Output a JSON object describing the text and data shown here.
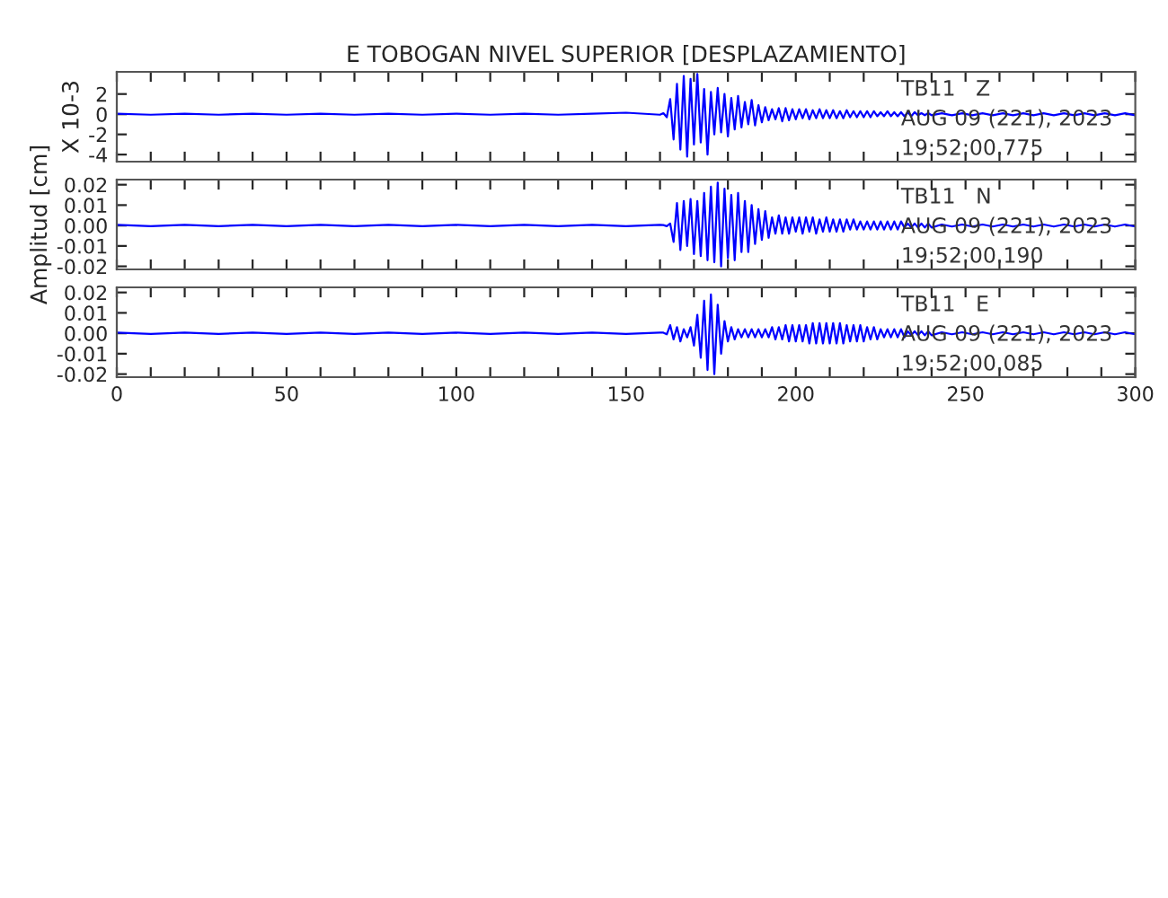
{
  "chart_data": [
    {
      "type": "line",
      "title": "E TOBOGAN NIVEL SUPERIOR [DESPLAZAMIENTO]",
      "ylabel": "X 10-3",
      "tick_labels": "y",
      "grid": false,
      "legend": false,
      "annotations": [
        "TB11   Z",
        "AUG 09 (221), 2023",
        "19:52:00.775"
      ],
      "xlim": [
        0,
        300
      ],
      "xticks": [
        0,
        {
          "value": 10,
          "label": null
        },
        {
          "value": 20,
          "label": null
        },
        {
          "value": 30,
          "label": null
        },
        {
          "value": 40,
          "label": null
        },
        50,
        {
          "value": 60,
          "label": null
        },
        {
          "value": 70,
          "label": null
        },
        {
          "value": 80,
          "label": null
        },
        {
          "value": 90,
          "label": null
        },
        100,
        {
          "value": 110,
          "label": null
        },
        {
          "value": 120,
          "label": null
        },
        {
          "value": 130,
          "label": null
        },
        {
          "value": 140,
          "label": null
        },
        150,
        {
          "value": 160,
          "label": null
        },
        {
          "value": 170,
          "label": null
        },
        {
          "value": 180,
          "label": null
        },
        {
          "value": 190,
          "label": null
        },
        200,
        {
          "value": 210,
          "label": null
        },
        {
          "value": 220,
          "label": null
        },
        {
          "value": 230,
          "label": null
        },
        {
          "value": 240,
          "label": null
        },
        250,
        {
          "value": 260,
          "label": null
        },
        {
          "value": 270,
          "label": null
        },
        {
          "value": 280,
          "label": null
        },
        {
          "value": 290,
          "label": null
        },
        300
      ],
      "ylim": [
        -4.7,
        4.2
      ],
      "yticks": [
        -4,
        -2,
        0,
        2
      ],
      "x": [
        0,
        10,
        20,
        30,
        40,
        50,
        60,
        70,
        80,
        90,
        100,
        110,
        120,
        130,
        140,
        150,
        160,
        161,
        162,
        163,
        164,
        165,
        166,
        167,
        168,
        169,
        170,
        171,
        172,
        173,
        174,
        175,
        176,
        177,
        178,
        179,
        180,
        181,
        182,
        183,
        184,
        185,
        186,
        187,
        188,
        189,
        190,
        191,
        192,
        193,
        194,
        195,
        196,
        197,
        198,
        199,
        200,
        201,
        202,
        203,
        204,
        205,
        206,
        207,
        208,
        209,
        210,
        211,
        212,
        213,
        214,
        215,
        216,
        217,
        218,
        219,
        220,
        221,
        222,
        223,
        224,
        225,
        226,
        227,
        228,
        229,
        230,
        231,
        232,
        233,
        234,
        235,
        236,
        237,
        238,
        239,
        240,
        243,
        246,
        249,
        252,
        255,
        258,
        261,
        264,
        267,
        270,
        273,
        276,
        279,
        282,
        285,
        288,
        291,
        294,
        297,
        300
      ],
      "series": [
        {
          "color": "#0000ff",
          "values": [
            0.05,
            -0.05,
            0.05,
            -0.05,
            0.05,
            -0.05,
            0.05,
            -0.05,
            0.05,
            -0.05,
            0.05,
            -0.05,
            0.05,
            -0.05,
            0.05,
            0.15,
            -0.05,
            0.1,
            -0.3,
            1.5,
            -2.5,
            3.0,
            -3.5,
            3.8,
            -4.2,
            3.5,
            -3.0,
            4.0,
            -2.8,
            2.5,
            -4.0,
            2.2,
            -2.0,
            2.6,
            -1.8,
            2.0,
            -2.2,
            1.6,
            -1.5,
            1.8,
            -1.3,
            1.2,
            -1.0,
            1.4,
            -1.1,
            0.9,
            -0.8,
            0.7,
            -0.6,
            0.5,
            -0.5,
            0.6,
            -0.7,
            0.6,
            -0.6,
            0.5,
            -0.5,
            0.5,
            -0.4,
            0.5,
            -0.5,
            0.4,
            -0.4,
            0.5,
            -0.4,
            0.4,
            -0.4,
            0.4,
            -0.4,
            0.3,
            -0.4,
            0.4,
            -0.3,
            0.3,
            -0.3,
            0.3,
            -0.3,
            0.3,
            -0.3,
            0.3,
            -0.2,
            0.2,
            -0.2,
            0.3,
            -0.2,
            0.2,
            -0.2,
            0.2,
            -0.2,
            0.2,
            -0.2,
            0.2,
            -0.1,
            0.1,
            -0.1,
            0.1,
            -0.1,
            0.1,
            -0.1,
            0.1,
            -0.1,
            0.1,
            -0.1,
            0.1,
            -0.1,
            0.1,
            -0.1,
            0.1,
            -0.1,
            0.1,
            -0.1,
            0.1,
            -0.1,
            0.1,
            -0.1,
            0.1,
            -0.1
          ]
        }
      ]
    },
    {
      "type": "line",
      "ylabel": "Amplitud [cm]",
      "tick_labels": "y",
      "grid": false,
      "legend": false,
      "annotations": [
        "TB11   N",
        "AUG 09 (221), 2023",
        "19:52:00.190"
      ],
      "xlim": [
        0,
        300
      ],
      "xticks": [
        0,
        {
          "value": 10,
          "label": null
        },
        {
          "value": 20,
          "label": null
        },
        {
          "value": 30,
          "label": null
        },
        {
          "value": 40,
          "label": null
        },
        50,
        {
          "value": 60,
          "label": null
        },
        {
          "value": 70,
          "label": null
        },
        {
          "value": 80,
          "label": null
        },
        {
          "value": 90,
          "label": null
        },
        100,
        {
          "value": 110,
          "label": null
        },
        {
          "value": 120,
          "label": null
        },
        {
          "value": 130,
          "label": null
        },
        {
          "value": 140,
          "label": null
        },
        150,
        {
          "value": 160,
          "label": null
        },
        {
          "value": 170,
          "label": null
        },
        {
          "value": 180,
          "label": null
        },
        {
          "value": 190,
          "label": null
        },
        200,
        {
          "value": 210,
          "label": null
        },
        {
          "value": 220,
          "label": null
        },
        {
          "value": 230,
          "label": null
        },
        {
          "value": 240,
          "label": null
        },
        250,
        {
          "value": 260,
          "label": null
        },
        {
          "value": 270,
          "label": null
        },
        {
          "value": 280,
          "label": null
        },
        {
          "value": 290,
          "label": null
        },
        300
      ],
      "ylim": [
        -0.0215,
        0.0225
      ],
      "yticks": [
        -0.02,
        -0.01,
        {
          "value": 0,
          "label": "0.00"
        },
        0.01,
        0.02
      ],
      "x": [
        0,
        10,
        20,
        30,
        40,
        50,
        60,
        70,
        80,
        90,
        100,
        110,
        120,
        130,
        140,
        150,
        160,
        161,
        162,
        163,
        164,
        165,
        166,
        167,
        168,
        169,
        170,
        171,
        172,
        173,
        174,
        175,
        176,
        177,
        178,
        179,
        180,
        181,
        182,
        183,
        184,
        185,
        186,
        187,
        188,
        189,
        190,
        191,
        192,
        193,
        194,
        195,
        196,
        197,
        198,
        199,
        200,
        201,
        202,
        203,
        204,
        205,
        206,
        207,
        208,
        209,
        210,
        211,
        212,
        213,
        214,
        215,
        216,
        217,
        218,
        219,
        220,
        221,
        222,
        223,
        224,
        225,
        226,
        227,
        228,
        229,
        230,
        231,
        232,
        233,
        234,
        235,
        236,
        237,
        238,
        239,
        240,
        243,
        246,
        249,
        252,
        255,
        258,
        261,
        264,
        267,
        270,
        273,
        276,
        279,
        282,
        285,
        288,
        291,
        294,
        297,
        300
      ],
      "series": [
        {
          "color": "#0000ff",
          "values": [
            0.0003,
            -0.0003,
            0.0003,
            -0.0003,
            0.0003,
            -0.0003,
            0.0003,
            -0.0003,
            0.0003,
            -0.0003,
            0.0003,
            -0.0003,
            0.0003,
            -0.0003,
            0.0003,
            -0.0003,
            0.0003,
            0.0002,
            -0.0003,
            0.001,
            -0.008,
            0.011,
            -0.012,
            0.012,
            -0.01,
            0.013,
            -0.014,
            0.012,
            -0.015,
            0.016,
            -0.017,
            0.019,
            -0.018,
            0.021,
            -0.02,
            0.018,
            -0.016,
            0.015,
            -0.017,
            0.016,
            -0.013,
            0.012,
            -0.013,
            0.01,
            -0.009,
            0.008,
            -0.007,
            0.007,
            -0.006,
            0.004,
            -0.004,
            0.005,
            -0.004,
            0.004,
            -0.004,
            0.004,
            -0.003,
            0.004,
            -0.004,
            0.004,
            -0.003,
            0.004,
            -0.004,
            0.003,
            -0.003,
            0.004,
            -0.003,
            0.003,
            -0.003,
            0.003,
            -0.003,
            0.003,
            -0.002,
            0.003,
            -0.002,
            0.002,
            -0.002,
            0.002,
            -0.002,
            0.002,
            -0.002,
            0.002,
            -0.002,
            0.002,
            -0.002,
            0.002,
            -0.002,
            0.002,
            -0.001,
            0.001,
            -0.001,
            0.001,
            -0.001,
            0.001,
            -0.001,
            0.001,
            -0.001,
            0.0005,
            -0.0005,
            0.0005,
            -0.0005,
            0.0005,
            -0.0005,
            0.0005,
            -0.0005,
            0.0005,
            -0.0005,
            0.0005,
            -0.0005,
            0.0005,
            -0.0005,
            0.0005,
            -0.0005,
            0.0005,
            -0.0005,
            0.0005,
            -0.0005
          ]
        }
      ]
    },
    {
      "type": "line",
      "grid": false,
      "legend": false,
      "annotations": [
        "TB11   E",
        "AUG 09 (221), 2023",
        "19:52:00.085"
      ],
      "xlim": [
        0,
        300
      ],
      "xticks": [
        0,
        {
          "value": 10,
          "label": null
        },
        {
          "value": 20,
          "label": null
        },
        {
          "value": 30,
          "label": null
        },
        {
          "value": 40,
          "label": null
        },
        50,
        {
          "value": 60,
          "label": null
        },
        {
          "value": 70,
          "label": null
        },
        {
          "value": 80,
          "label": null
        },
        {
          "value": 90,
          "label": null
        },
        100,
        {
          "value": 110,
          "label": null
        },
        {
          "value": 120,
          "label": null
        },
        {
          "value": 130,
          "label": null
        },
        {
          "value": 140,
          "label": null
        },
        150,
        {
          "value": 160,
          "label": null
        },
        {
          "value": 170,
          "label": null
        },
        {
          "value": 180,
          "label": null
        },
        {
          "value": 190,
          "label": null
        },
        200,
        {
          "value": 210,
          "label": null
        },
        {
          "value": 220,
          "label": null
        },
        {
          "value": 230,
          "label": null
        },
        {
          "value": 240,
          "label": null
        },
        250,
        {
          "value": 260,
          "label": null
        },
        {
          "value": 270,
          "label": null
        },
        {
          "value": 280,
          "label": null
        },
        {
          "value": 290,
          "label": null
        },
        300
      ],
      "ylim": [
        -0.0215,
        0.0225
      ],
      "yticks": [
        -0.02,
        -0.01,
        {
          "value": 0,
          "label": "0.00"
        },
        0.01,
        0.02
      ],
      "x": [
        0,
        10,
        20,
        30,
        40,
        50,
        60,
        70,
        80,
        90,
        100,
        110,
        120,
        130,
        140,
        150,
        160,
        161,
        162,
        163,
        164,
        165,
        166,
        167,
        168,
        169,
        170,
        171,
        172,
        173,
        174,
        175,
        176,
        177,
        178,
        179,
        180,
        181,
        182,
        183,
        184,
        185,
        186,
        187,
        188,
        189,
        190,
        191,
        192,
        193,
        194,
        195,
        196,
        197,
        198,
        199,
        200,
        201,
        202,
        203,
        204,
        205,
        206,
        207,
        208,
        209,
        210,
        211,
        212,
        213,
        214,
        215,
        216,
        217,
        218,
        219,
        220,
        221,
        222,
        223,
        224,
        225,
        226,
        227,
        228,
        229,
        230,
        231,
        232,
        233,
        234,
        235,
        236,
        237,
        238,
        239,
        240,
        243,
        246,
        249,
        252,
        255,
        258,
        261,
        264,
        267,
        270,
        273,
        276,
        279,
        282,
        285,
        288,
        291,
        294,
        297,
        300
      ],
      "series": [
        {
          "color": "#0000ff",
          "values": [
            0.0003,
            -0.0003,
            0.0003,
            -0.0003,
            0.0003,
            -0.0003,
            0.0003,
            -0.0003,
            0.0003,
            -0.0003,
            0.0003,
            -0.0003,
            0.0003,
            -0.0003,
            0.0003,
            -0.0003,
            0.0003,
            0.0003,
            -0.0005,
            0.004,
            -0.003,
            0.003,
            -0.004,
            0.002,
            -0.002,
            0.003,
            -0.006,
            0.009,
            -0.012,
            0.016,
            -0.018,
            0.019,
            -0.02,
            0.014,
            -0.01,
            0.006,
            -0.004,
            0.003,
            -0.003,
            0.002,
            -0.002,
            0.002,
            -0.002,
            0.002,
            -0.002,
            0.002,
            -0.002,
            0.002,
            -0.002,
            0.003,
            -0.003,
            0.003,
            -0.003,
            0.004,
            -0.004,
            0.004,
            -0.004,
            0.004,
            -0.004,
            0.004,
            -0.005,
            0.005,
            -0.005,
            0.005,
            -0.005,
            0.005,
            -0.005,
            0.005,
            -0.005,
            0.005,
            -0.005,
            0.004,
            -0.004,
            0.004,
            -0.004,
            0.004,
            -0.004,
            0.003,
            -0.003,
            0.003,
            -0.003,
            0.002,
            -0.002,
            0.002,
            -0.002,
            0.002,
            -0.002,
            0.002,
            -0.002,
            0.001,
            -0.001,
            0.001,
            -0.001,
            0.001,
            -0.001,
            0.001,
            -0.001,
            0.0005,
            -0.0005,
            0.0005,
            -0.0005,
            0.0005,
            -0.0005,
            0.0005,
            -0.0005,
            0.0005,
            -0.0005,
            0.0005,
            -0.0005,
            0.0005,
            -0.0005,
            0.0005,
            -0.0005,
            0.0005,
            -0.0005,
            0.0005,
            -0.0005
          ]
        }
      ]
    }
  ]
}
